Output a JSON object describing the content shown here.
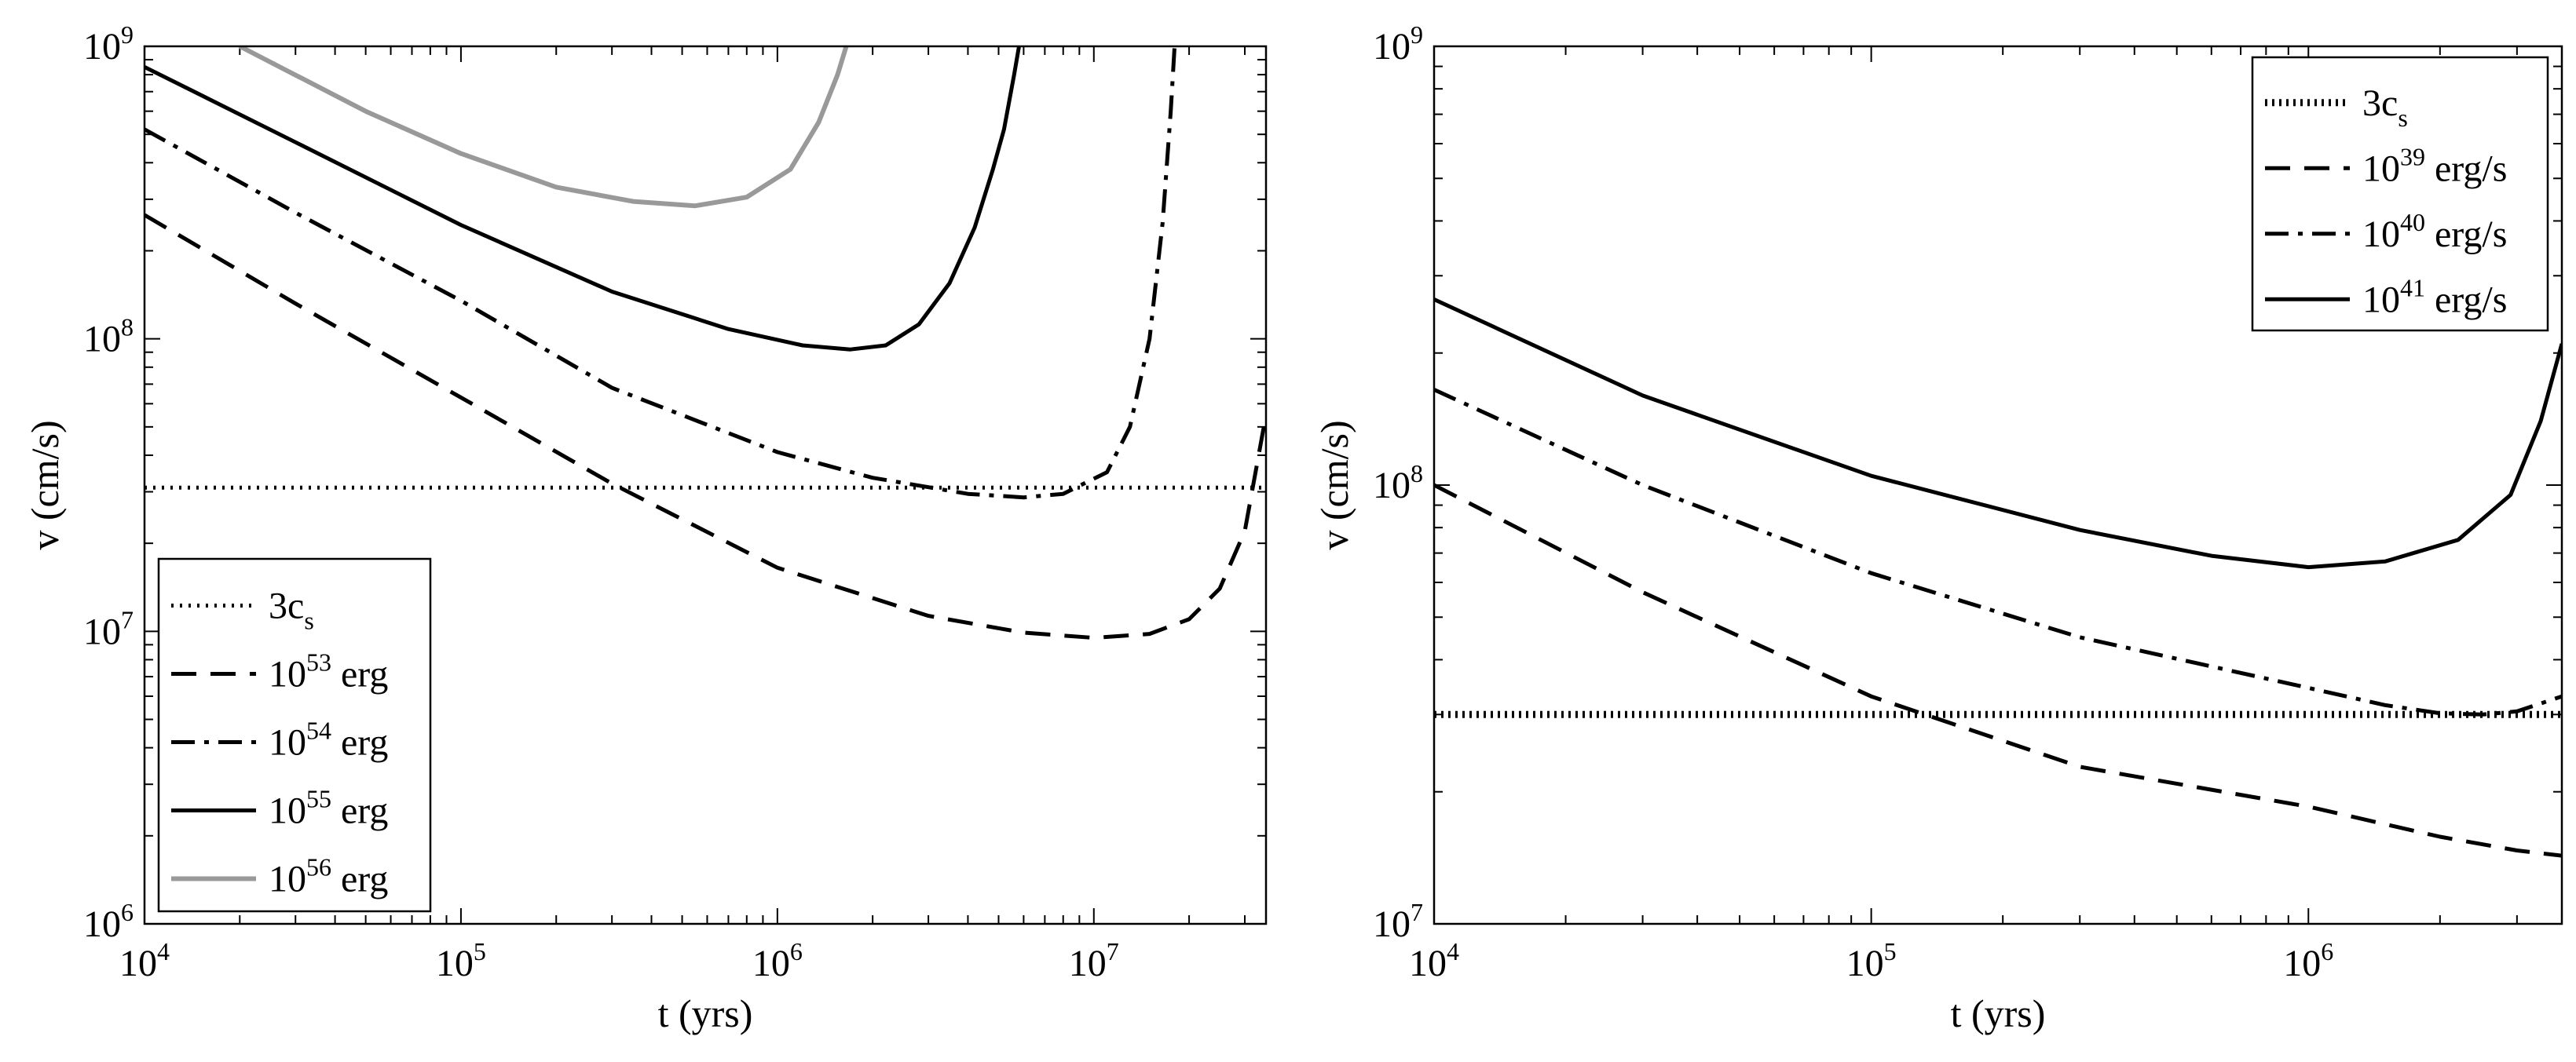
{
  "chart_data": [
    {
      "type": "line",
      "xlabel": "t (yrs)",
      "ylabel": "v (cm/s)",
      "xscale": "log",
      "yscale": "log",
      "xlim": [
        10000,
        35000000
      ],
      "ylim": [
        1000000,
        1000000000
      ],
      "x_ticks": [
        {
          "base": "10",
          "exp": "4",
          "value": 10000
        },
        {
          "base": "10",
          "exp": "5",
          "value": 100000
        },
        {
          "base": "10",
          "exp": "6",
          "value": 1000000
        },
        {
          "base": "10",
          "exp": "7",
          "value": 10000000
        }
      ],
      "y_ticks": [
        {
          "base": "10",
          "exp": "6",
          "value": 1000000
        },
        {
          "base": "10",
          "exp": "7",
          "value": 10000000
        },
        {
          "base": "10",
          "exp": "8",
          "value": 100000000
        },
        {
          "base": "10",
          "exp": "9",
          "value": 1000000000
        }
      ],
      "grid": false,
      "legend_position": "bottom-left",
      "series": [
        {
          "label_base": "3c",
          "label_sub": "s",
          "label_exp": "",
          "label_unit": "",
          "style": "dotted",
          "color": "#000000",
          "x": [
            10000,
            35000000
          ],
          "y": [
            31000000,
            31000000
          ]
        },
        {
          "label_base": "10",
          "label_sub": "",
          "label_exp": "53",
          "label_unit": " erg",
          "style": "dashed",
          "color": "#000000",
          "x": [
            10000,
            30000,
            100000,
            300000,
            1000000,
            3000000,
            6000000,
            10000000,
            15000000,
            20000000,
            25000000,
            30000000,
            35000000
          ],
          "y": [
            265000000,
            132000000,
            63000000,
            32000000,
            16500000,
            11300000,
            9900000,
            9500000,
            9800000,
            11000000,
            14000000,
            22000000,
            55000000
          ]
        },
        {
          "label_base": "10",
          "label_sub": "",
          "label_exp": "54",
          "label_unit": " erg",
          "style": "dash-dot",
          "color": "#000000",
          "x": [
            10000,
            30000,
            100000,
            300000,
            1000000,
            2000000,
            4000000,
            6000000,
            8000000,
            11000000,
            13000000,
            15000000,
            16500000,
            17500000,
            18000000
          ],
          "y": [
            520000000,
            270000000,
            135000000,
            68000000,
            41000000,
            33500000,
            29500000,
            28700000,
            29500000,
            35000000,
            50000000,
            100000000,
            250000000,
            600000000,
            1000000000
          ]
        },
        {
          "label_base": "10",
          "label_sub": "",
          "label_exp": "55",
          "label_unit": " erg",
          "style": "solid",
          "color": "#000000",
          "x": [
            10000,
            30000,
            100000,
            300000,
            700000,
            1200000,
            1700000,
            2200000,
            2800000,
            3500000,
            4200000,
            4800000,
            5200000,
            5600000,
            5800000
          ],
          "y": [
            850000000,
            470000000,
            245000000,
            145000000,
            108000000,
            95000000,
            92000000,
            95000000,
            112000000,
            155000000,
            240000000,
            380000000,
            520000000,
            800000000,
            1000000000
          ]
        },
        {
          "label_base": "10",
          "label_sub": "",
          "label_exp": "56",
          "label_unit": " erg",
          "style": "solid-gray",
          "color": "#999999",
          "x": [
            20000,
            50000,
            100000,
            200000,
            350000,
            550000,
            800000,
            1100000,
            1350000,
            1550000,
            1650000
          ],
          "y": [
            1000000000,
            600000000,
            430000000,
            330000000,
            295000000,
            285000000,
            305000000,
            380000000,
            550000000,
            800000000,
            1000000000
          ]
        }
      ]
    },
    {
      "type": "line",
      "xlabel": "t (yrs)",
      "ylabel": "v (cm/s)",
      "xscale": "log",
      "yscale": "log",
      "xlim": [
        10000,
        3800000
      ],
      "ylim": [
        10000000,
        1000000000
      ],
      "x_ticks": [
        {
          "base": "10",
          "exp": "4",
          "value": 10000
        },
        {
          "base": "10",
          "exp": "5",
          "value": 100000
        },
        {
          "base": "10",
          "exp": "6",
          "value": 1000000
        }
      ],
      "y_ticks": [
        {
          "base": "10",
          "exp": "7",
          "value": 10000000
        },
        {
          "base": "10",
          "exp": "8",
          "value": 100000000
        },
        {
          "base": "10",
          "exp": "9",
          "value": 1000000000
        }
      ],
      "grid": false,
      "legend_position": "top-right",
      "series": [
        {
          "label_base": "3c",
          "label_sub": "s",
          "label_exp": "",
          "label_unit": "",
          "style": "dotted-thick",
          "color": "#000000",
          "x": [
            10000,
            3800000
          ],
          "y": [
            30000000,
            30000000
          ]
        },
        {
          "label_base": "10",
          "label_sub": "",
          "label_exp": "39",
          "label_unit": " erg/s",
          "style": "dashed",
          "color": "#000000",
          "x": [
            10000,
            30000,
            100000,
            300000,
            1000000,
            2000000,
            3000000,
            3800000
          ],
          "y": [
            100000000,
            57000000,
            33000000,
            22800000,
            18500000,
            15800000,
            14700000,
            14300000
          ]
        },
        {
          "label_base": "10",
          "label_sub": "",
          "label_exp": "40",
          "label_unit": " erg/s",
          "style": "dash-dot",
          "color": "#000000",
          "x": [
            10000,
            30000,
            100000,
            300000,
            1000000,
            1500000,
            2000000,
            2500000,
            3000000,
            3800000
          ],
          "y": [
            165000000,
            100000000,
            63000000,
            45000000,
            34500000,
            31500000,
            30200000,
            30000000,
            30500000,
            33000000
          ]
        },
        {
          "label_base": "10",
          "label_sub": "",
          "label_exp": "41",
          "label_unit": " erg/s",
          "style": "solid",
          "color": "#000000",
          "x": [
            10000,
            30000,
            100000,
            300000,
            600000,
            1000000,
            1500000,
            2200000,
            2900000,
            3400000,
            3800000
          ],
          "y": [
            265000000,
            160000000,
            105000000,
            79000000,
            69000000,
            65000000,
            67000000,
            75000000,
            95000000,
            140000000,
            210000000
          ]
        }
      ]
    }
  ]
}
